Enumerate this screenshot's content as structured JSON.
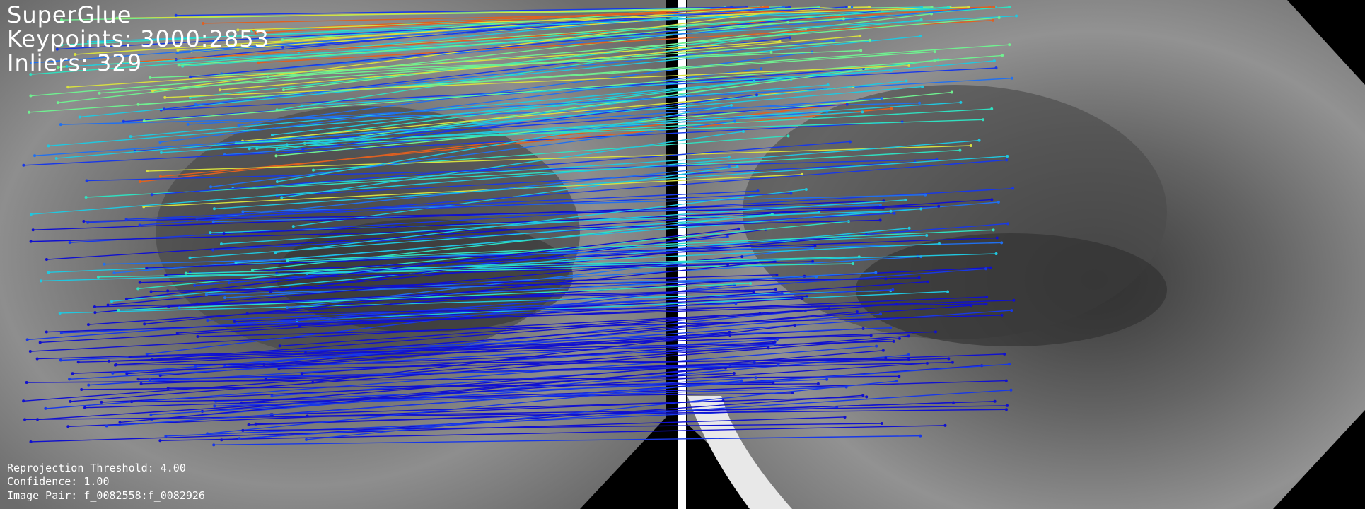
{
  "header": {
    "method": "SuperGlue",
    "keypoints": "Keypoints: 3000:2853",
    "inliers": "Inliers: 329"
  },
  "footer": {
    "threshold": "Reprojection Threshold: 4.00",
    "confidence": "Confidence: 1.00",
    "image_pair": "Image Pair: f_0082558:f_0082926"
  },
  "colors": {
    "background": "#000000",
    "divider": "#ffffff",
    "tissue": "#8a8a8a",
    "match_low": "#1010d0",
    "match_mid": "#20c8e0",
    "match_high": "#d8e040",
    "match_peak": "#e06020"
  }
}
